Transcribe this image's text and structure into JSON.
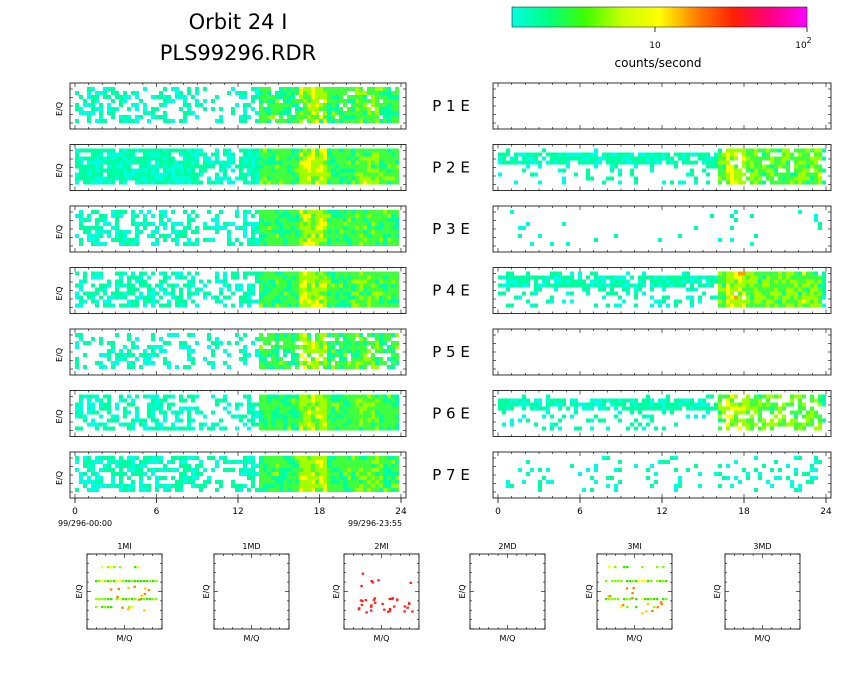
{
  "header": {
    "title_line1": "Orbit 24 I",
    "title_line2": "PLS99296.RDR"
  },
  "colorbar": {
    "label": "counts/second",
    "tick_mid": "10",
    "tick_high_base": "10",
    "tick_high_exp": "2",
    "colors": [
      "#00ffe0",
      "#00ff80",
      "#40ff00",
      "#c8ff00",
      "#ffff00",
      "#ff8000",
      "#ff2000",
      "#ff0080",
      "#ff00ff"
    ]
  },
  "chart_data": {
    "type": "heatmap",
    "x_range": [
      0,
      24
    ],
    "x_ticks": [
      "0",
      "6",
      "12",
      "18",
      "24"
    ],
    "left_time_start": "99/296-00:00",
    "left_time_end": "99/296-23:55",
    "ylabel": "E/Q",
    "grid": false,
    "color_scale": "log",
    "color_range": [
      1,
      120
    ],
    "rows": [
      {
        "row_label": "P  1  E",
        "left_density": 0.45,
        "left_intensity": 0.3,
        "right_density": 0.0,
        "right_intensity": 0.0
      },
      {
        "row_label": "P  2  E",
        "left_density": 0.9,
        "left_intensity": 0.45,
        "right_density": 0.55,
        "right_intensity": 0.4
      },
      {
        "row_label": "P  3  E",
        "left_density": 0.55,
        "left_intensity": 0.35,
        "right_density": 0.04,
        "right_intensity": 0.1
      },
      {
        "row_label": "P  4  E",
        "left_density": 0.6,
        "left_intensity": 0.4,
        "right_density": 0.65,
        "right_intensity": 0.5
      },
      {
        "row_label": "P  5  E",
        "left_density": 0.35,
        "left_intensity": 0.3,
        "right_density": 0.0,
        "right_intensity": 0.0
      },
      {
        "row_label": "P  6  E",
        "left_density": 0.55,
        "left_intensity": 0.4,
        "right_density": 0.45,
        "right_intensity": 0.45
      },
      {
        "row_label": "P  7  E",
        "left_density": 0.6,
        "left_intensity": 0.4,
        "right_density": 0.12,
        "right_intensity": 0.15
      }
    ],
    "mq_panels": [
      {
        "title": "1MI",
        "xlabel": "M/Q",
        "ylabel": "E/Q",
        "has_data": true,
        "palette": "green"
      },
      {
        "title": "1MD",
        "xlabel": "M/Q",
        "ylabel": "E/Q",
        "has_data": false,
        "palette": "none"
      },
      {
        "title": "2MI",
        "xlabel": "M/Q",
        "ylabel": "E/Q",
        "has_data": true,
        "palette": "red"
      },
      {
        "title": "2MD",
        "xlabel": "M/Q",
        "ylabel": "E/Q",
        "has_data": false,
        "palette": "none"
      },
      {
        "title": "3MI",
        "xlabel": "M/Q",
        "ylabel": "E/Q",
        "has_data": true,
        "palette": "green"
      },
      {
        "title": "3MD",
        "xlabel": "M/Q",
        "ylabel": "E/Q",
        "has_data": false,
        "palette": "none"
      }
    ]
  }
}
